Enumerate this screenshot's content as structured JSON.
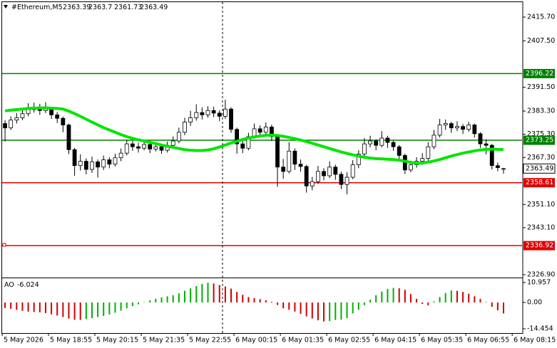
{
  "chart_data": [
    {
      "type": "candlestick",
      "title": "#Ethereum,M5",
      "open": [
        2379.0,
        2377.5,
        2380.2,
        2381.0,
        2382.4,
        2383.8,
        2384.6,
        2383.5,
        2384.2,
        2382.0,
        2380.8,
        2378.5,
        2370.0,
        2364.5,
        2366.0,
        2363.2,
        2365.8,
        2364.0,
        2366.5,
        2365.0,
        2367.2,
        2368.8,
        2372.0,
        2371.0,
        2370.5,
        2371.8,
        2370.2,
        2371.0,
        2369.8,
        2371.5,
        2373.0,
        2376.0,
        2379.5,
        2381.0,
        2382.8,
        2382.0,
        2383.5,
        2382.6,
        2381.5,
        2384.0,
        2377.0,
        2372.0,
        2370.5,
        2374.5,
        2377.2,
        2376.0,
        2377.8,
        2374.5,
        2364.0,
        2362.5,
        2369.5,
        2365.0,
        2364.2,
        2357.5,
        2359.0,
        2362.5,
        2361.0,
        2364.0,
        2361.5,
        2358.0,
        2360.5,
        2364.8,
        2368.5,
        2372.0,
        2373.0,
        2371.5,
        2374.0,
        2372.5,
        2371.0,
        2368.0,
        2363.0,
        2364.8,
        2366.0,
        2367.0,
        2371.0,
        2375.0,
        2378.5,
        2379.0,
        2377.5,
        2378.0,
        2377.0,
        2378.5,
        2375.5,
        2372.0,
        2371.5,
        2364.5,
        2363.39
      ],
      "high": [
        2380.2,
        2381.5,
        2382.6,
        2384.0,
        2386.0,
        2386.2,
        2385.8,
        2386.4,
        2384.8,
        2383.0,
        2381.4,
        2379.0,
        2370.6,
        2368.4,
        2367.0,
        2367.6,
        2366.6,
        2368.0,
        2367.4,
        2368.6,
        2370.4,
        2373.4,
        2373.0,
        2372.4,
        2373.2,
        2372.6,
        2372.2,
        2371.8,
        2372.8,
        2374.6,
        2377.6,
        2381.0,
        2383.4,
        2385.6,
        2384.6,
        2385.0,
        2384.8,
        2383.6,
        2387.2,
        2384.6,
        2377.6,
        2373.4,
        2375.8,
        2379.0,
        2378.4,
        2379.4,
        2378.6,
        2375.2,
        2366.8,
        2372.6,
        2370.4,
        2366.6,
        2364.8,
        2360.6,
        2364.4,
        2363.6,
        2366.0,
        2364.8,
        2362.4,
        2362.2,
        2366.4,
        2369.8,
        2374.0,
        2374.8,
        2373.6,
        2376.4,
        2374.8,
        2373.2,
        2371.6,
        2368.6,
        2366.2,
        2367.4,
        2368.8,
        2372.6,
        2376.8,
        2380.6,
        2380.4,
        2379.6,
        2379.8,
        2378.8,
        2379.6,
        2379.0,
        2376.0,
        2373.6,
        2372.0,
        2365.6,
        2363.7
      ],
      "low": [
        2372.8,
        2376.8,
        2379.0,
        2380.2,
        2381.5,
        2382.8,
        2382.0,
        2382.6,
        2380.6,
        2379.2,
        2376.0,
        2368.5,
        2361.0,
        2362.8,
        2361.5,
        2362.0,
        2360.4,
        2363.0,
        2363.6,
        2364.2,
        2366.0,
        2368.0,
        2369.6,
        2369.0,
        2369.8,
        2368.8,
        2369.4,
        2368.6,
        2369.0,
        2370.4,
        2372.2,
        2375.0,
        2378.2,
        2380.0,
        2380.4,
        2381.0,
        2381.2,
        2379.8,
        2380.6,
        2375.8,
        2368.6,
        2368.8,
        2369.8,
        2373.8,
        2374.6,
        2375.2,
        2373.0,
        2357.2,
        2360.0,
        2361.8,
        2363.0,
        2362.4,
        2355.2,
        2356.0,
        2358.2,
        2359.4,
        2360.2,
        2359.6,
        2356.4,
        2354.6,
        2359.8,
        2363.6,
        2367.6,
        2370.8,
        2369.8,
        2370.8,
        2370.6,
        2369.6,
        2366.4,
        2361.6,
        2362.2,
        2363.8,
        2364.8,
        2366.2,
        2370.2,
        2374.2,
        2376.8,
        2375.8,
        2376.4,
        2375.4,
        2376.2,
        2374.2,
        2370.6,
        2368.4,
        2363.2,
        2362.6,
        2361.73
      ],
      "close": [
        2377.5,
        2380.2,
        2381.0,
        2382.4,
        2383.8,
        2384.6,
        2383.5,
        2384.2,
        2382.0,
        2380.8,
        2378.5,
        2370.0,
        2364.5,
        2366.0,
        2363.2,
        2365.8,
        2364.0,
        2366.5,
        2365.0,
        2367.2,
        2368.8,
        2372.0,
        2371.0,
        2370.5,
        2371.8,
        2370.2,
        2371.0,
        2369.8,
        2371.5,
        2373.0,
        2376.0,
        2379.5,
        2381.0,
        2382.8,
        2382.0,
        2383.5,
        2382.6,
        2381.5,
        2384.0,
        2377.0,
        2372.0,
        2370.5,
        2374.5,
        2377.2,
        2376.0,
        2377.8,
        2374.5,
        2364.0,
        2362.5,
        2369.5,
        2365.0,
        2364.2,
        2357.5,
        2359.0,
        2362.5,
        2361.0,
        2364.0,
        2361.5,
        2358.0,
        2360.5,
        2364.8,
        2368.5,
        2372.0,
        2373.0,
        2371.5,
        2374.0,
        2372.5,
        2371.0,
        2368.0,
        2363.0,
        2364.8,
        2366.0,
        2367.0,
        2371.0,
        2375.0,
        2378.5,
        2379.0,
        2377.5,
        2378.0,
        2377.0,
        2378.5,
        2375.5,
        2372.0,
        2371.5,
        2364.5,
        2363.8,
        2363.49
      ],
      "up_color": "#ffffff",
      "down_color": "#000000",
      "outline_color": "#000000",
      "ma": {
        "color": "#00e600",
        "values": [
          2383.4,
          2383.6,
          2383.8,
          2384.0,
          2384.2,
          2384.3,
          2384.4,
          2384.4,
          2384.3,
          2384.2,
          2384.0,
          2383.3,
          2382.4,
          2381.5,
          2380.5,
          2379.5,
          2378.5,
          2377.6,
          2376.8,
          2376.0,
          2375.2,
          2374.5,
          2373.9,
          2373.4,
          2373.0,
          2372.5,
          2372.1,
          2371.6,
          2371.2,
          2370.8,
          2370.4,
          2370.0,
          2369.8,
          2369.7,
          2369.7,
          2369.9,
          2370.3,
          2370.9,
          2371.6,
          2372.3,
          2372.9,
          2373.5,
          2374.0,
          2374.4,
          2374.7,
          2374.9,
          2375.0,
          2374.9,
          2374.6,
          2374.2,
          2373.8,
          2373.3,
          2372.8,
          2372.2,
          2371.6,
          2371.0,
          2370.4,
          2369.8,
          2369.2,
          2368.7,
          2368.2,
          2367.8,
          2367.4,
          2367.1,
          2366.9,
          2366.8,
          2366.7,
          2366.6,
          2366.4,
          2366.0,
          2365.6,
          2365.3,
          2365.4,
          2365.7,
          2366.1,
          2366.6,
          2367.2,
          2367.8,
          2368.3,
          2368.8,
          2369.2,
          2369.6,
          2369.9,
          2370.1,
          2370.2,
          2370.1,
          2370.0
        ]
      },
      "levels": [
        {
          "value": 2396.22,
          "color": "#008000"
        },
        {
          "value": 2373.25,
          "color": "#008000"
        },
        {
          "value": 2358.61,
          "color": "#e00000"
        },
        {
          "value": 2336.92,
          "color": "#e00000"
        }
      ],
      "ylim": [
        2325.92,
        2420.85
      ],
      "yticks": [
        {
          "value": 2415.7,
          "label": "2415.70"
        },
        {
          "value": 2407.5,
          "label": "2407.50"
        },
        {
          "value": 2391.5,
          "label": "2391.50"
        },
        {
          "value": 2383.3,
          "label": "2383.30"
        },
        {
          "value": 2375.3,
          "label": "2375.30"
        },
        {
          "value": 2367.3,
          "label": "2367.30"
        },
        {
          "value": 2351.1,
          "label": "2351.10"
        },
        {
          "value": 2343.1,
          "label": "2343.10"
        },
        {
          "value": 2326.9,
          "label": "2326.90"
        }
      ],
      "xlim": [
        0,
        89.7
      ],
      "xticks": [
        {
          "value": 0,
          "label": "5 May 2026"
        },
        {
          "value": 8,
          "label": "5 May 18:55"
        },
        {
          "value": 16,
          "label": "5 May 20:15"
        },
        {
          "value": 24,
          "label": "5 May 21:35"
        },
        {
          "value": 32,
          "label": "5 May 22:55"
        },
        {
          "value": 40,
          "label": "6 May 00:15"
        },
        {
          "value": 48,
          "label": "6 May 01:35"
        },
        {
          "value": 56,
          "label": "6 May 02:55"
        },
        {
          "value": 64,
          "label": "6 May 04:15"
        },
        {
          "value": 72,
          "label": "6 May 05:35"
        },
        {
          "value": 80,
          "label": "6 May 06:55"
        },
        {
          "value": 88,
          "label": "6 May 08:15"
        }
      ]
    },
    {
      "type": "bar",
      "title": "AO",
      "values": [
        -3.0,
        -3.5,
        -4.0,
        -4.6,
        -5.0,
        -5.2,
        -5.4,
        -5.8,
        -6.5,
        -7.2,
        -8.0,
        -8.8,
        -9.5,
        -9.6,
        -9.2,
        -8.6,
        -8.0,
        -7.4,
        -6.6,
        -5.6,
        -4.5,
        -3.2,
        -2.0,
        -1.0,
        0.2,
        1.2,
        2.0,
        2.8,
        3.4,
        4.0,
        5.0,
        6.4,
        7.8,
        9.0,
        10.2,
        10.8,
        10.4,
        9.6,
        8.8,
        7.6,
        5.8,
        4.2,
        3.0,
        2.4,
        1.8,
        1.2,
        0.4,
        -1.4,
        -3.2,
        -4.0,
        -5.0,
        -6.2,
        -7.6,
        -8.8,
        -9.8,
        -10.4,
        -10.2,
        -9.6,
        -9.4,
        -8.6,
        -6.0,
        -4.0,
        -1.5,
        1.5,
        4.0,
        6.0,
        7.4,
        8.0,
        7.8,
        7.0,
        4.6,
        2.0,
        -0.8,
        -1.6,
        0.6,
        3.0,
        5.2,
        6.6,
        6.4,
        5.8,
        4.8,
        3.4,
        2.0,
        0.2,
        -2.4,
        -4.3,
        -6.024
      ],
      "up_color": "#00b000",
      "down_color": "#d00000",
      "ylim": [
        -16.8,
        13.3
      ],
      "yticks": [
        10.957,
        {
          "value": 0,
          "label": "0.00"
        },
        -14.454
      ]
    }
  ]
}
